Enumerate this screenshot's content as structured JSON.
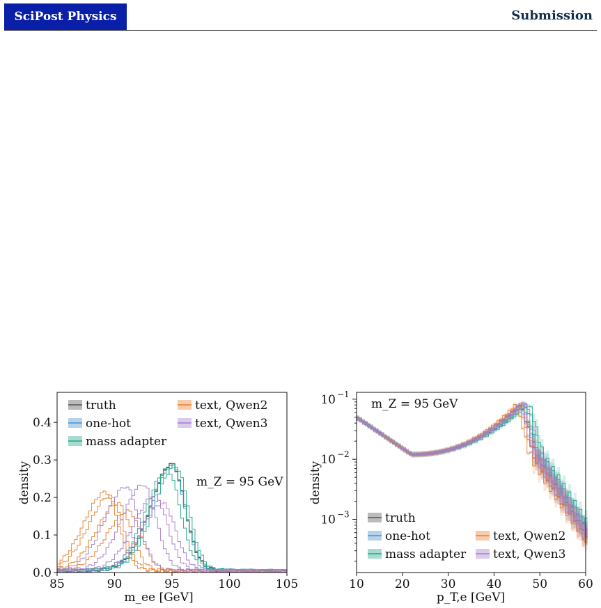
{
  "header": {
    "journal": "SciPost Physics",
    "label": "Submission"
  },
  "colors": {
    "truth": "#555555",
    "one_hot": "#4c8fd0",
    "mass_adapter": "#1fa88a",
    "text_qwen2": "#e8802b",
    "text_qwen3": "#a57dcc"
  },
  "chart_data": [
    {
      "type": "line",
      "annotation": "m_Z = 95 GeV",
      "xlabel": "m_ee [GeV]",
      "ylabel": "density",
      "xlim": [
        85,
        105
      ],
      "ylim": [
        0,
        0.48
      ],
      "xticks": [
        85,
        90,
        95,
        100,
        105
      ],
      "yticks": [
        0.0,
        0.1,
        0.2,
        0.3,
        0.4
      ],
      "xtick_labels": [
        "85",
        "90",
        "95",
        "100",
        "105"
      ],
      "ytick_labels": [
        "0.0",
        "0.1",
        "0.2",
        "0.3",
        "0.4"
      ],
      "legend": {
        "placement": "top-left",
        "entries": [
          "truth",
          "text, Qwen2",
          "one-hot",
          "text, Qwen3",
          "mass adapter"
        ]
      },
      "series": [
        {
          "name": "truth",
          "peaks": [
            [
              95.0,
              0.285
            ]
          ]
        },
        {
          "name": "one-hot",
          "peaks": [
            [
              95.0,
              0.28
            ]
          ]
        },
        {
          "name": "mass adapter",
          "peaks": [
            [
              94.6,
              0.27
            ],
            [
              95.0,
              0.285
            ],
            [
              95.3,
              0.28
            ]
          ]
        },
        {
          "name": "text, Qwen2",
          "peaks": [
            [
              89.2,
              0.21
            ],
            [
              89.6,
              0.2
            ],
            [
              90.3,
              0.18
            ],
            [
              91.2,
              0.16
            ]
          ]
        },
        {
          "name": "text, Qwen3",
          "peaks": [
            [
              91.0,
              0.225
            ],
            [
              92.5,
              0.23
            ],
            [
              93.5,
              0.2
            ],
            [
              94.2,
              0.18
            ]
          ]
        }
      ]
    },
    {
      "type": "line",
      "annotation": "m_Z = 95 GeV",
      "xlabel": "p_T,e [GeV]",
      "ylabel": "density",
      "yscale": "log",
      "xlim": [
        10,
        60
      ],
      "ylim": [
        0.00013,
        0.13
      ],
      "xticks": [
        10,
        20,
        30,
        40,
        50,
        60
      ],
      "xtick_labels": [
        "10",
        "20",
        "30",
        "40",
        "50",
        "60"
      ],
      "ytick_labels": [
        "10",
        "10",
        "10"
      ],
      "ytick_exponents": [
        "−3",
        "−2",
        "−1"
      ],
      "yticks": [
        0.001,
        0.01,
        0.1
      ],
      "legend": {
        "placement": "bottom",
        "entries": [
          "truth",
          "one-hot",
          "text, Qwen2",
          "mass adapter",
          "text, Qwen3"
        ]
      },
      "series": [
        {
          "name": "truth",
          "edge": 46.5
        },
        {
          "name": "one-hot",
          "edge": 47.0
        },
        {
          "name": "mass adapter",
          "edge": 47.2
        },
        {
          "name": "text, Qwen2",
          "edge": 45.5
        },
        {
          "name": "text, Qwen3",
          "edge": 46.3
        }
      ]
    }
  ]
}
